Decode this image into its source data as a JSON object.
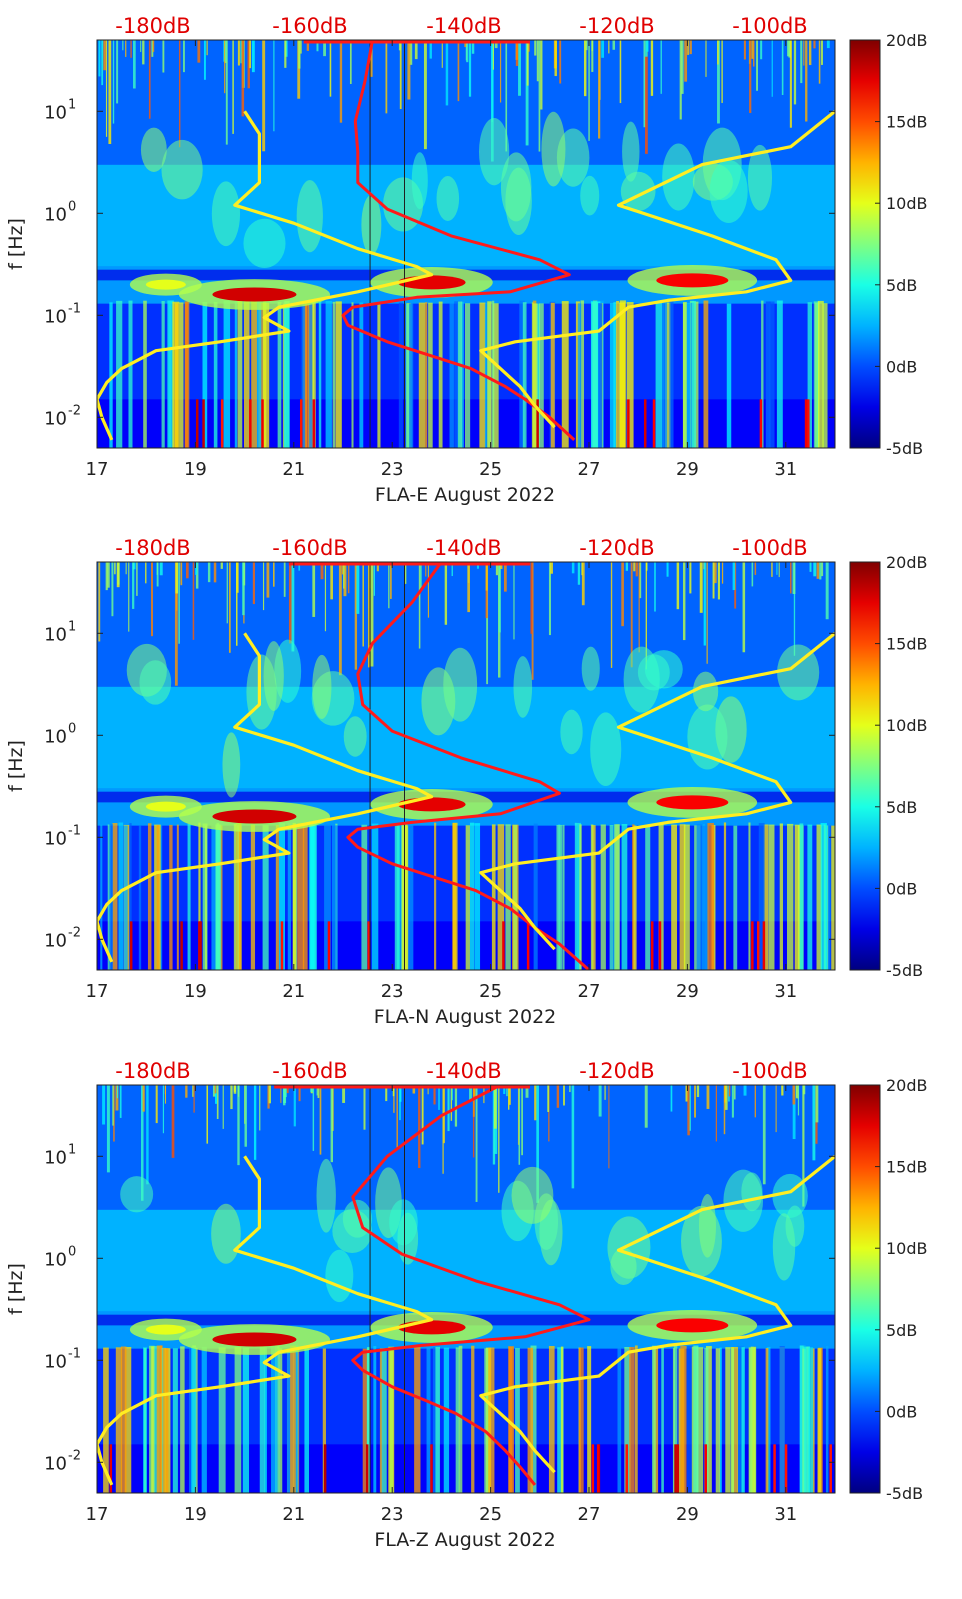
{
  "figure": {
    "colors": {
      "noise_model": "#ff1a1a",
      "top_axis_labels": "#e00000",
      "yellow_curves": "#ffee22",
      "axis": "#222222"
    },
    "colormap_name": "jet"
  },
  "chart_data": [
    {
      "type": "heatmap",
      "panel": "east",
      "title": "",
      "xlabel": "FLA-E August 2022",
      "ylabel": "f [Hz]",
      "x_range": [
        17,
        32
      ],
      "x_ticks": [
        17,
        19,
        21,
        23,
        25,
        27,
        29,
        31
      ],
      "x_tick_labels": [
        "17",
        "19",
        "21",
        "23",
        "25",
        "27",
        "29",
        "31"
      ],
      "y_scale": "log",
      "y_range": [
        0.005,
        50
      ],
      "y_ticks": [
        0.01,
        0.1,
        1,
        10
      ],
      "y_tick_bases": [
        "10",
        "10",
        "10",
        "10"
      ],
      "y_tick_exps": [
        "-2",
        "-1",
        "0",
        "1"
      ],
      "top_axis_labels": [
        "-180dB",
        "-160dB",
        "-140dB",
        "-120dB",
        "-100dB"
      ],
      "colorbar": {
        "min_db": -5,
        "max_db": 20,
        "labels": [
          "20dB",
          "15dB",
          "10dB",
          "5dB",
          "0dB",
          "-5dB"
        ]
      },
      "series": [
        {
          "name": "noise-model-red",
          "color": "#ff1a1a",
          "points": [
            [
              22.6,
              50
            ],
            [
              22.45,
              20
            ],
            [
              22.25,
              8
            ],
            [
              22.3,
              4
            ],
            [
              22.3,
              2
            ],
            [
              22.9,
              1.1
            ],
            [
              24.2,
              0.6
            ],
            [
              26.0,
              0.35
            ],
            [
              26.6,
              0.25
            ],
            [
              25.4,
              0.17
            ],
            [
              23.5,
              0.15
            ],
            [
              22.2,
              0.12
            ],
            [
              22.0,
              0.1
            ],
            [
              22.1,
              0.08
            ],
            [
              22.9,
              0.055
            ],
            [
              23.8,
              0.04
            ],
            [
              24.6,
              0.03
            ],
            [
              25.3,
              0.02
            ],
            [
              25.7,
              0.015
            ],
            [
              26.2,
              0.01
            ],
            [
              26.7,
              0.006
            ]
          ]
        },
        {
          "name": "yellow-left",
          "color": "#ffee22",
          "points": [
            [
              20.0,
              10
            ],
            [
              20.3,
              6
            ],
            [
              20.3,
              2
            ],
            [
              19.8,
              1.2
            ],
            [
              21.0,
              0.8
            ],
            [
              22.3,
              0.45
            ],
            [
              23.5,
              0.3
            ],
            [
              23.8,
              0.25
            ],
            [
              22.3,
              0.17
            ],
            [
              20.7,
              0.12
            ],
            [
              20.4,
              0.095
            ],
            [
              20.9,
              0.07
            ],
            [
              19.5,
              0.055
            ],
            [
              18.2,
              0.045
            ],
            [
              17.5,
              0.03
            ],
            [
              17.2,
              0.022
            ],
            [
              17.0,
              0.015
            ],
            [
              17.1,
              0.01
            ],
            [
              17.3,
              0.006
            ]
          ]
        },
        {
          "name": "yellow-right",
          "color": "#ffee22",
          "points": [
            [
              32.0,
              10
            ],
            [
              31.1,
              4.5
            ],
            [
              29.3,
              3
            ],
            [
              27.6,
              1.2
            ],
            [
              29.5,
              0.6
            ],
            [
              30.8,
              0.35
            ],
            [
              31.1,
              0.22
            ],
            [
              30.2,
              0.17
            ],
            [
              28.6,
              0.14
            ],
            [
              27.8,
              0.12
            ],
            [
              27.2,
              0.07
            ],
            [
              25.5,
              0.055
            ],
            [
              24.8,
              0.045
            ],
            [
              25.2,
              0.03
            ],
            [
              25.6,
              0.02
            ],
            [
              25.9,
              0.013
            ],
            [
              26.3,
              0.008
            ]
          ]
        }
      ]
    },
    {
      "type": "heatmap",
      "panel": "north",
      "title": "",
      "xlabel": "FLA-N August 2022",
      "ylabel": "f [Hz]",
      "x_range": [
        17,
        32
      ],
      "x_ticks": [
        17,
        19,
        21,
        23,
        25,
        27,
        29,
        31
      ],
      "x_tick_labels": [
        "17",
        "19",
        "21",
        "23",
        "25",
        "27",
        "29",
        "31"
      ],
      "y_scale": "log",
      "y_range": [
        0.005,
        50
      ],
      "y_ticks": [
        0.01,
        0.1,
        1,
        10
      ],
      "y_tick_bases": [
        "10",
        "10",
        "10",
        "10"
      ],
      "y_tick_exps": [
        "-2",
        "-1",
        "0",
        "1"
      ],
      "top_axis_labels": [
        "-180dB",
        "-160dB",
        "-140dB",
        "-120dB",
        "-100dB"
      ],
      "colorbar": {
        "min_db": -5,
        "max_db": 20,
        "labels": [
          "20dB",
          "15dB",
          "10dB",
          "5dB",
          "0dB",
          "-5dB"
        ]
      },
      "series": [
        {
          "name": "noise-model-red",
          "color": "#ff1a1a",
          "points": [
            [
              24.0,
              50
            ],
            [
              23.4,
              20
            ],
            [
              22.6,
              8
            ],
            [
              22.3,
              4
            ],
            [
              22.4,
              2
            ],
            [
              23.0,
              1.1
            ],
            [
              24.4,
              0.6
            ],
            [
              26.0,
              0.35
            ],
            [
              26.4,
              0.27
            ],
            [
              25.2,
              0.17
            ],
            [
              23.4,
              0.14
            ],
            [
              22.3,
              0.12
            ],
            [
              22.1,
              0.1
            ],
            [
              22.3,
              0.08
            ],
            [
              23.0,
              0.055
            ],
            [
              23.9,
              0.04
            ],
            [
              24.7,
              0.03
            ],
            [
              25.4,
              0.02
            ],
            [
              25.9,
              0.013
            ],
            [
              26.4,
              0.009
            ],
            [
              27.0,
              0.005
            ]
          ]
        },
        {
          "name": "yellow-left",
          "color": "#ffee22",
          "points": [
            [
              20.0,
              10
            ],
            [
              20.3,
              6
            ],
            [
              20.3,
              2
            ],
            [
              19.8,
              1.2
            ],
            [
              21.0,
              0.8
            ],
            [
              22.3,
              0.45
            ],
            [
              23.5,
              0.3
            ],
            [
              23.8,
              0.25
            ],
            [
              22.3,
              0.17
            ],
            [
              20.7,
              0.12
            ],
            [
              20.4,
              0.095
            ],
            [
              20.9,
              0.07
            ],
            [
              19.5,
              0.055
            ],
            [
              18.2,
              0.045
            ],
            [
              17.5,
              0.03
            ],
            [
              17.2,
              0.022
            ],
            [
              17.0,
              0.015
            ],
            [
              17.1,
              0.01
            ],
            [
              17.3,
              0.006
            ]
          ]
        },
        {
          "name": "yellow-right",
          "color": "#ffee22",
          "points": [
            [
              32.0,
              10
            ],
            [
              31.1,
              4.5
            ],
            [
              29.3,
              3
            ],
            [
              27.6,
              1.2
            ],
            [
              29.5,
              0.6
            ],
            [
              30.8,
              0.35
            ],
            [
              31.1,
              0.22
            ],
            [
              30.2,
              0.17
            ],
            [
              28.6,
              0.14
            ],
            [
              27.8,
              0.12
            ],
            [
              27.2,
              0.07
            ],
            [
              25.5,
              0.055
            ],
            [
              24.8,
              0.045
            ],
            [
              25.2,
              0.03
            ],
            [
              25.6,
              0.02
            ],
            [
              25.9,
              0.013
            ],
            [
              26.3,
              0.008
            ]
          ]
        }
      ]
    },
    {
      "type": "heatmap",
      "panel": "vertical",
      "title": "",
      "xlabel": "FLA-Z August 2022",
      "ylabel": "f [Hz]",
      "x_range": [
        17,
        32
      ],
      "x_ticks": [
        17,
        19,
        21,
        23,
        25,
        27,
        29,
        31
      ],
      "x_tick_labels": [
        "17",
        "19",
        "21",
        "23",
        "25",
        "27",
        "29",
        "31"
      ],
      "y_scale": "log",
      "y_range": [
        0.005,
        50
      ],
      "y_ticks": [
        0.01,
        0.1,
        1,
        10
      ],
      "y_tick_bases": [
        "10",
        "10",
        "10",
        "10"
      ],
      "y_tick_exps": [
        "-2",
        "-1",
        "0",
        "1"
      ],
      "top_axis_labels": [
        "-180dB",
        "-160dB",
        "-140dB",
        "-120dB",
        "-100dB"
      ],
      "colorbar": {
        "min_db": -5,
        "max_db": 20,
        "labels": [
          "20dB",
          "15dB",
          "10dB",
          "5dB",
          "0dB",
          "-5dB"
        ]
      },
      "series": [
        {
          "name": "noise-model-red",
          "color": "#ff1a1a",
          "points": [
            [
              25.2,
              50
            ],
            [
              24.0,
              25
            ],
            [
              22.9,
              10
            ],
            [
              22.2,
              4
            ],
            [
              22.4,
              2
            ],
            [
              23.2,
              1.1
            ],
            [
              24.7,
              0.6
            ],
            [
              26.4,
              0.35
            ],
            [
              27.0,
              0.25
            ],
            [
              25.7,
              0.17
            ],
            [
              23.6,
              0.14
            ],
            [
              22.4,
              0.12
            ],
            [
              22.2,
              0.1
            ],
            [
              22.4,
              0.08
            ],
            [
              23.0,
              0.055
            ],
            [
              23.7,
              0.04
            ],
            [
              24.3,
              0.03
            ],
            [
              24.9,
              0.02
            ],
            [
              25.3,
              0.013
            ],
            [
              25.6,
              0.009
            ],
            [
              25.9,
              0.006
            ]
          ]
        },
        {
          "name": "yellow-left",
          "color": "#ffee22",
          "points": [
            [
              20.0,
              10
            ],
            [
              20.3,
              6
            ],
            [
              20.3,
              2
            ],
            [
              19.8,
              1.2
            ],
            [
              21.0,
              0.8
            ],
            [
              22.3,
              0.45
            ],
            [
              23.5,
              0.3
            ],
            [
              23.8,
              0.25
            ],
            [
              22.3,
              0.17
            ],
            [
              20.7,
              0.12
            ],
            [
              20.4,
              0.095
            ],
            [
              20.9,
              0.07
            ],
            [
              19.5,
              0.055
            ],
            [
              18.2,
              0.045
            ],
            [
              17.5,
              0.03
            ],
            [
              17.2,
              0.022
            ],
            [
              17.0,
              0.015
            ],
            [
              17.1,
              0.01
            ],
            [
              17.3,
              0.006
            ]
          ]
        },
        {
          "name": "yellow-right",
          "color": "#ffee22",
          "points": [
            [
              32.0,
              10
            ],
            [
              31.1,
              4.5
            ],
            [
              29.3,
              3
            ],
            [
              27.6,
              1.2
            ],
            [
              29.5,
              0.6
            ],
            [
              30.8,
              0.35
            ],
            [
              31.1,
              0.22
            ],
            [
              30.2,
              0.17
            ],
            [
              28.6,
              0.14
            ],
            [
              27.8,
              0.12
            ],
            [
              27.2,
              0.07
            ],
            [
              25.5,
              0.055
            ],
            [
              24.8,
              0.045
            ],
            [
              25.2,
              0.03
            ],
            [
              25.6,
              0.02
            ],
            [
              25.9,
              0.013
            ],
            [
              26.3,
              0.008
            ]
          ]
        }
      ]
    }
  ]
}
